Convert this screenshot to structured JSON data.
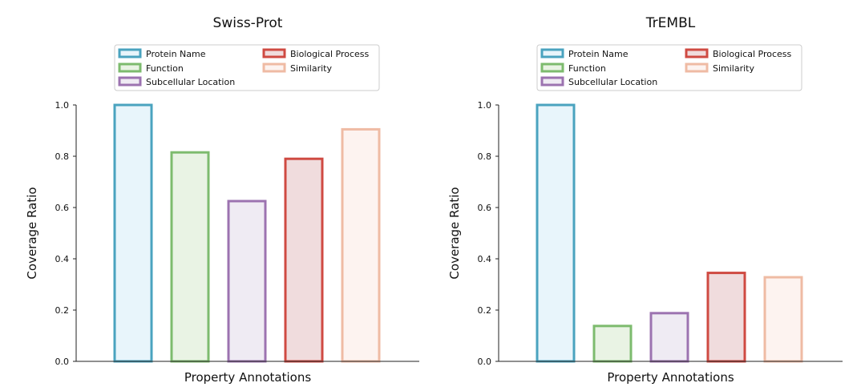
{
  "chart_data": [
    {
      "type": "bar",
      "title": "Swiss-Prot",
      "xlabel": "Property Annotations",
      "ylabel": "Coverage Ratio",
      "ylim": [
        0,
        1.0
      ],
      "yticks": [
        "0.0",
        "0.2",
        "0.4",
        "0.6",
        "0.8",
        "1.0"
      ],
      "grid": false,
      "legend_position": "top",
      "categories": [
        "Protein Name",
        "Function",
        "Subcellular Location",
        "Biological Process",
        "Similarity"
      ],
      "values": [
        1.0,
        0.815,
        0.625,
        0.79,
        0.905
      ]
    },
    {
      "type": "bar",
      "title": "TrEMBL",
      "xlabel": "Property Annotations",
      "ylabel": "Coverage Ratio",
      "ylim": [
        0,
        1.0
      ],
      "yticks": [
        "0.0",
        "0.2",
        "0.4",
        "0.6",
        "0.8",
        "1.0"
      ],
      "grid": false,
      "legend_position": "top",
      "categories": [
        "Protein Name",
        "Function",
        "Subcellular Location",
        "Biological Process",
        "Similarity"
      ],
      "values": [
        1.0,
        0.138,
        0.188,
        0.345,
        0.328
      ]
    }
  ],
  "colors": {
    "Protein Name": {
      "edge": "#4aa3bf",
      "fill": "#e8f5fb"
    },
    "Function": {
      "edge": "#7dbb6e",
      "fill": "#e9f3e4"
    },
    "Subcellular Location": {
      "edge": "#9c73b0",
      "fill": "#efebf3"
    },
    "Biological Process": {
      "edge": "#cf4a42",
      "fill": "#f0dcdd"
    },
    "Similarity": {
      "edge": "#efbba4",
      "fill": "#fdf3f0"
    }
  }
}
